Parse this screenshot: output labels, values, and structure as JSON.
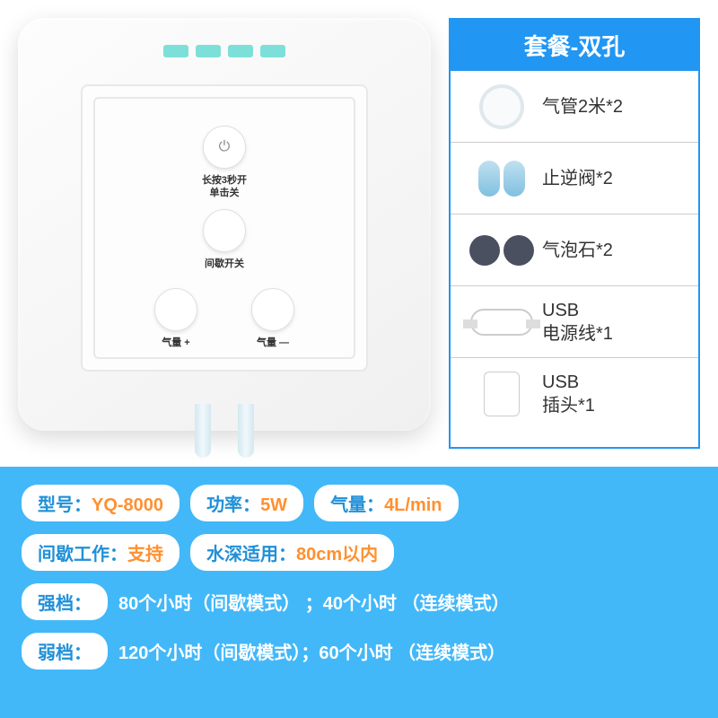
{
  "device": {
    "power_label_line1": "长按3秒开",
    "power_label_line2": "单击关",
    "mode_label": "间歇开关",
    "vol_up_label": "气量 +",
    "vol_down_label": "气量 —"
  },
  "package": {
    "title": "套餐-双孔",
    "items": [
      {
        "icon": "tube",
        "label": "气管2米*2"
      },
      {
        "icon": "valve",
        "label": "止逆阀*2"
      },
      {
        "icon": "stone",
        "label": "气泡石*2"
      },
      {
        "icon": "cable",
        "label": "USB\n电源线*1"
      },
      {
        "icon": "plug",
        "label": "USB\n插头*1"
      }
    ]
  },
  "specs": {
    "model_label": "型号：",
    "model_value": "YQ-8000",
    "power_label": "功率：",
    "power_value": "5W",
    "air_label": "气量：",
    "air_value": "4L/min",
    "int_label": "间歇工作：",
    "int_value": "支持",
    "depth_label": "水深适用：",
    "depth_value": "80cm以内",
    "high_label": "强档：",
    "high_value": "80个小时（间歇模式） ；40个小时 （连续模式）",
    "low_label": "弱档：",
    "low_value": "120个小时（间歇模式）；60个小时 （连续模式）"
  },
  "colors": {
    "accent_blue": "#2196f3",
    "spec_bg": "#42b8f9",
    "led": "#7de0d8",
    "orange": "#ff9030"
  }
}
